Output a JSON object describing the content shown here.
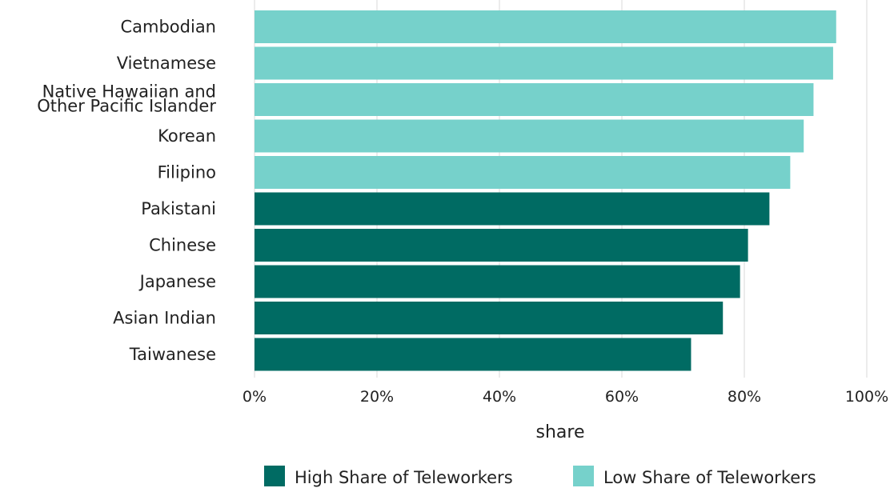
{
  "chart_data": {
    "type": "bar",
    "orientation": "horizontal",
    "categories": [
      "Cambodian",
      "Vietnamese",
      "Native Hawaiian and\nOther Pacific Islander",
      "Korean",
      "Filipino",
      "Pakistani",
      "Chinese",
      "Japanese",
      "Asian Indian",
      "Taiwanese"
    ],
    "values": [
      0.95,
      0.945,
      0.913,
      0.897,
      0.875,
      0.841,
      0.806,
      0.793,
      0.765,
      0.713
    ],
    "groups": [
      "Low Share of Teleworkers",
      "Low Share of Teleworkers",
      "Low Share of Teleworkers",
      "Low Share of Teleworkers",
      "Low Share of Teleworkers",
      "High Share of Teleworkers",
      "High Share of Teleworkers",
      "High Share of Teleworkers",
      "High Share of Teleworkers",
      "High Share of Teleworkers"
    ],
    "xlabel": "share",
    "xlim": [
      0,
      1
    ],
    "xticks": [
      0,
      0.2,
      0.4,
      0.6,
      0.8,
      1.0
    ],
    "xtick_labels": [
      "0%",
      "20%",
      "40%",
      "60%",
      "80%",
      "100%"
    ],
    "grid": true,
    "legend": {
      "placement": "bottom-right",
      "entries": [
        {
          "label": "High Share of Teleworkers",
          "color": "#006b63"
        },
        {
          "label": "Low Share of Teleworkers",
          "color": "#76d1cb"
        }
      ]
    }
  }
}
